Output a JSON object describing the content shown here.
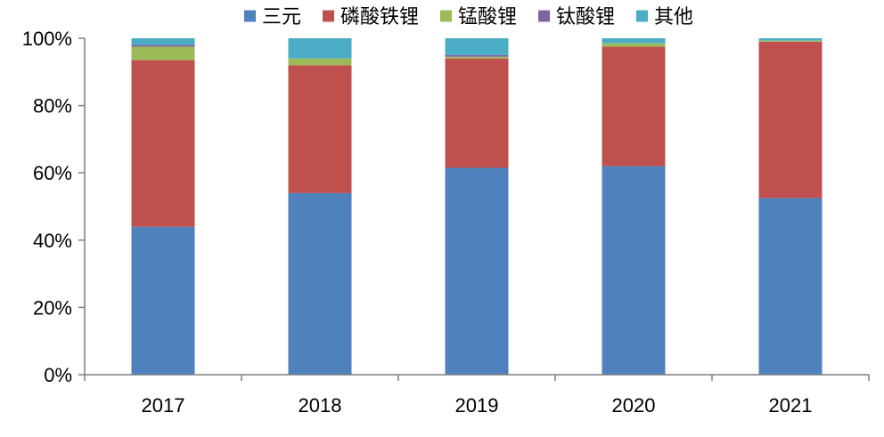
{
  "chart_data": {
    "type": "bar",
    "stacked": true,
    "categories": [
      "2017",
      "2018",
      "2019",
      "2020",
      "2021"
    ],
    "series": [
      {
        "name": "三元",
        "color": "#4f81bd",
        "values": [
          44,
          54,
          61.5,
          62,
          52.5
        ]
      },
      {
        "name": "磷酸铁锂",
        "color": "#c0504d",
        "values": [
          49.5,
          38,
          32.5,
          35.5,
          46.5
        ]
      },
      {
        "name": "锰酸锂",
        "color": "#9bbb59",
        "values": [
          4,
          2,
          0.5,
          1,
          0.3
        ]
      },
      {
        "name": "钛酸锂",
        "color": "#8064a2",
        "values": [
          0.5,
          0,
          0.5,
          0,
          0
        ]
      },
      {
        "name": "其他",
        "color": "#4bacc6",
        "values": [
          2,
          6,
          5,
          1.5,
          0.7
        ]
      }
    ],
    "ylim": [
      0,
      100
    ],
    "yticks": [
      "0%",
      "20%",
      "40%",
      "60%",
      "80%",
      "100%"
    ],
    "grid": false,
    "legend_position": "top"
  }
}
